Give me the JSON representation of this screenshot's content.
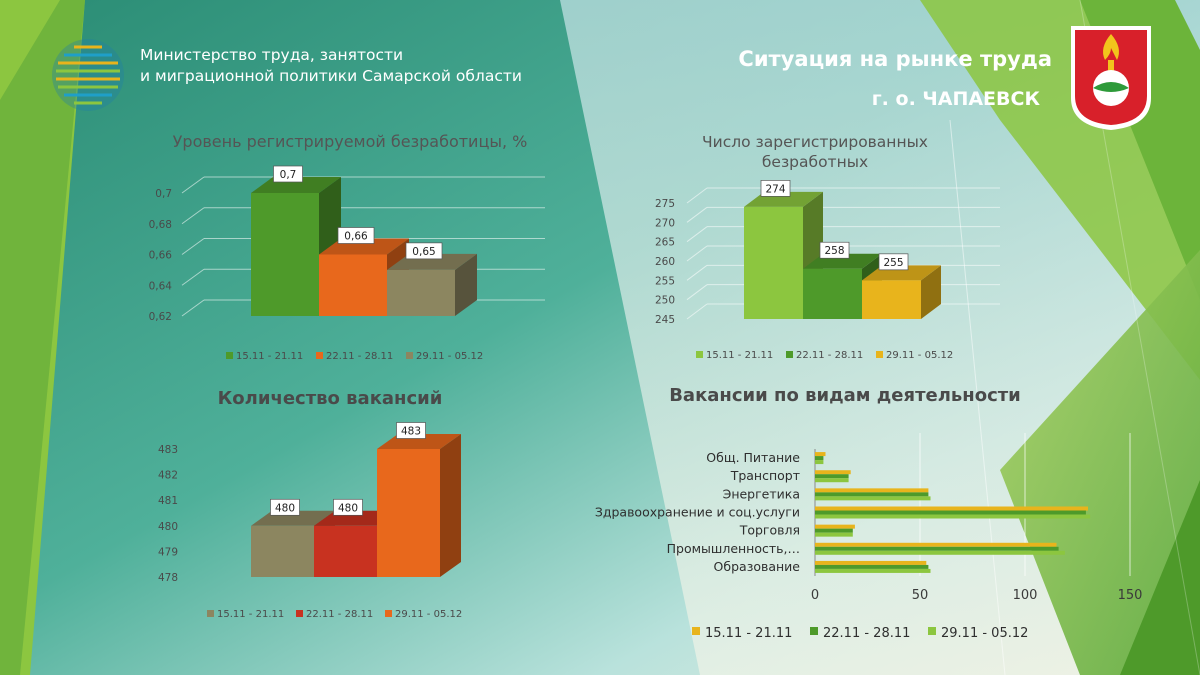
{
  "header": {
    "ministry_line1": "Министерство труда, занятости",
    "ministry_line2": "и миграционной политики Самарской области",
    "title": "Ситуация на рынке труда",
    "subtitle": "г. о. ЧАПАЕВСК"
  },
  "colors": {
    "green_dark": "#4e9a2a",
    "green_light": "#8cc63f",
    "orange": "#e8681c",
    "olive": "#8c8660",
    "yellow": "#e8b41c",
    "red": "#c83220"
  },
  "chart_data": [
    {
      "id": "unemployment",
      "type": "bar",
      "title": "Уровень регистрируемой  безработицы, %",
      "categories": [
        "15.11 - 21.11",
        "22.11 - 28.11",
        "29.11 - 05.12"
      ],
      "values": [
        0.7,
        0.66,
        0.65
      ],
      "value_labels": [
        "0,7",
        "0,66",
        "0,65"
      ],
      "ylim": [
        0.62,
        0.7
      ],
      "ticks": [
        "0,62",
        "0,64",
        "0,66",
        "0,68",
        "0,7"
      ],
      "colors": [
        "#4e9a2a",
        "#e8681c",
        "#8c8660"
      ],
      "legend": "bottom",
      "grid": true
    },
    {
      "id": "registered",
      "type": "bar",
      "title": "Число зарегистрированных безработных",
      "title_lines": [
        "Число зарегистрированных",
        "безработных"
      ],
      "categories": [
        "15.11 - 21.11",
        "22.11 - 28.11",
        "29.11 - 05.12"
      ],
      "values": [
        274,
        258,
        255
      ],
      "value_labels": [
        "274",
        "258",
        "255"
      ],
      "ylim": [
        245,
        275
      ],
      "ticks": [
        "245",
        "250",
        "255",
        "260",
        "265",
        "270",
        "275"
      ],
      "colors": [
        "#8cc63f",
        "#4e9a2a",
        "#e8b41c"
      ],
      "legend": "bottom",
      "grid": true
    },
    {
      "id": "vacancies",
      "type": "bar",
      "title": "Количество вакансий",
      "categories": [
        "15.11 - 21.11",
        "22.11 - 28.11",
        "29.11 - 05.12"
      ],
      "values": [
        480,
        480,
        483
      ],
      "value_labels": [
        "480",
        "480",
        "483"
      ],
      "ylim": [
        478,
        483
      ],
      "ticks": [
        "478",
        "479",
        "480",
        "481",
        "482",
        "483"
      ],
      "colors": [
        "#8c8660",
        "#c83220",
        "#e8681c"
      ],
      "legend": "bottom",
      "grid": false
    },
    {
      "id": "by_activity",
      "type": "bar",
      "orientation": "horizontal",
      "title": "Вакансии по видам деятельности",
      "categories": [
        "Общ. Питание",
        "Транспорт",
        "Энергетика",
        "Здравоохранение и соц.услуги",
        "Торговля",
        "Промышленность,…",
        "Образование"
      ],
      "series": [
        {
          "name": "15.11 - 21.11",
          "color": "#e8b41c",
          "values": [
            5,
            17,
            54,
            130,
            19,
            115,
            53
          ]
        },
        {
          "name": "22.11 - 28.11",
          "color": "#4e9a2a",
          "values": [
            4,
            16,
            54,
            129,
            18,
            116,
            54
          ]
        },
        {
          "name": "29.11 - 05.12",
          "color": "#8cc63f",
          "values": [
            4,
            16,
            55,
            131,
            18,
            119,
            55
          ]
        }
      ],
      "xlim": [
        0,
        150
      ],
      "ticks": [
        "0",
        "50",
        "100",
        "150"
      ],
      "legend": "bottom",
      "grid": true
    }
  ]
}
